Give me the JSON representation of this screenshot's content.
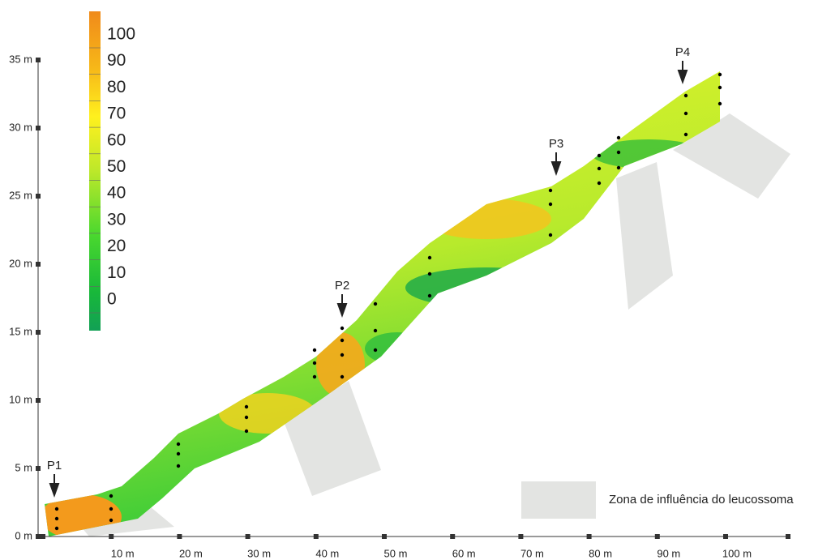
{
  "y_axis": {
    "labels": [
      "0 m",
      "5 m",
      "10 m",
      "15 m",
      "20 m",
      "25 m",
      "30 m",
      "35 m"
    ]
  },
  "x_axis": {
    "labels": [
      "10 m",
      "20 m",
      "30 m",
      "40 m",
      "50 m",
      "60 m",
      "70 m",
      "80 m",
      "90 m",
      "100 m"
    ]
  },
  "color_scale": {
    "labels": [
      "100",
      "90",
      "80",
      "70",
      "60",
      "50",
      "40",
      "30",
      "20",
      "10",
      "0"
    ]
  },
  "profiles": [
    "P1",
    "P2",
    "P3",
    "P4"
  ],
  "legend": {
    "label": "Zona de influência do leucossoma"
  }
}
